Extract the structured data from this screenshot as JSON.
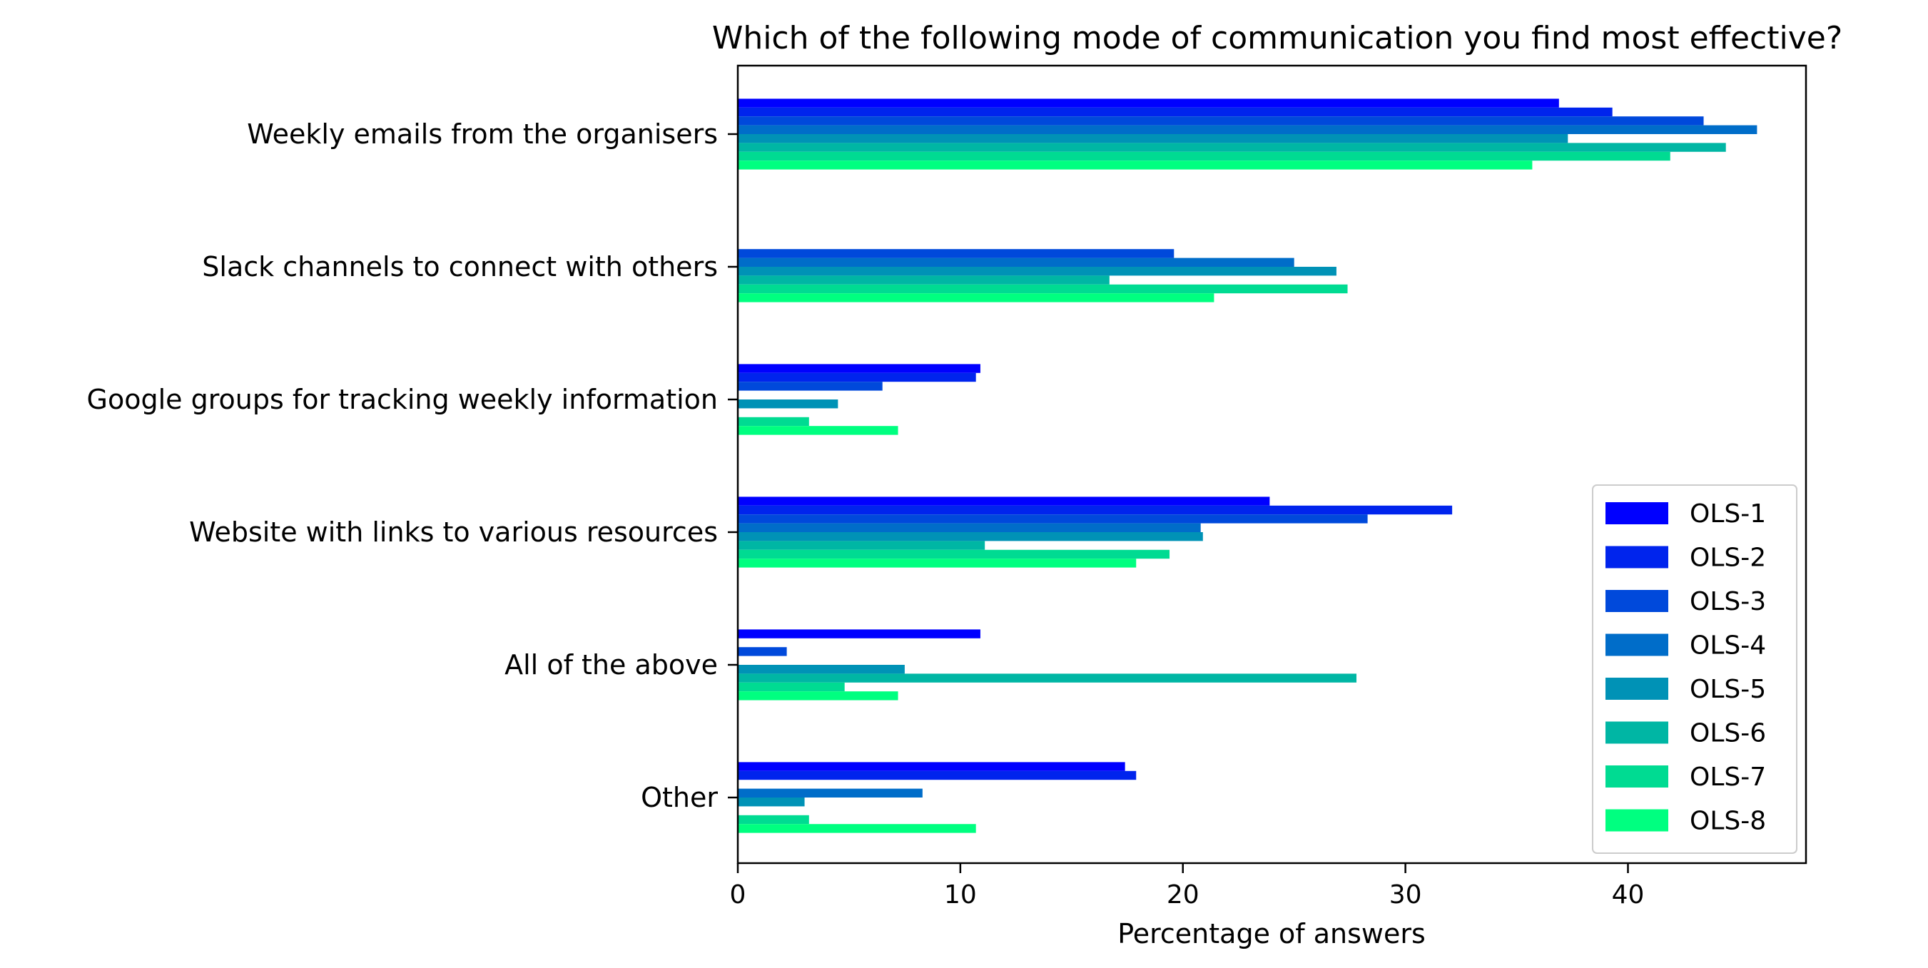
{
  "chart_data": {
    "type": "bar",
    "orientation": "horizontal",
    "title": "Which of the following mode of communication you find most effective?",
    "xlabel": "Percentage of answers",
    "ylabel": "",
    "xlim": [
      0,
      48
    ],
    "xticks": [
      0,
      10,
      20,
      30,
      40
    ],
    "grid": false,
    "legend_position": "lower-right",
    "categories": [
      "Weekly emails from the organisers",
      "Slack channels to connect with others",
      "Google groups for tracking weekly information",
      "Website with links to various resources",
      "All of the above",
      "Other"
    ],
    "series": [
      {
        "name": "OLS-1",
        "color": "#0000ff",
        "values": [
          36.9,
          0,
          10.9,
          23.9,
          10.9,
          17.4
        ]
      },
      {
        "name": "OLS-2",
        "color": "#0024ed",
        "values": [
          39.3,
          0,
          10.7,
          32.1,
          0,
          17.9
        ]
      },
      {
        "name": "OLS-3",
        "color": "#0049db",
        "values": [
          43.4,
          19.6,
          6.5,
          28.3,
          2.2,
          0
        ]
      },
      {
        "name": "OLS-4",
        "color": "#006dc9",
        "values": [
          45.8,
          25.0,
          0,
          20.8,
          0,
          8.3
        ]
      },
      {
        "name": "OLS-5",
        "color": "#0092b6",
        "values": [
          37.3,
          26.9,
          4.5,
          20.9,
          7.5,
          3.0
        ]
      },
      {
        "name": "OLS-6",
        "color": "#00b6a4",
        "values": [
          44.4,
          16.7,
          0,
          11.1,
          27.8,
          0
        ]
      },
      {
        "name": "OLS-7",
        "color": "#00db92",
        "values": [
          41.9,
          27.4,
          3.2,
          19.4,
          4.8,
          3.2
        ]
      },
      {
        "name": "OLS-8",
        "color": "#00ff80",
        "values": [
          35.7,
          21.4,
          7.2,
          17.9,
          7.2,
          10.7
        ]
      }
    ]
  }
}
